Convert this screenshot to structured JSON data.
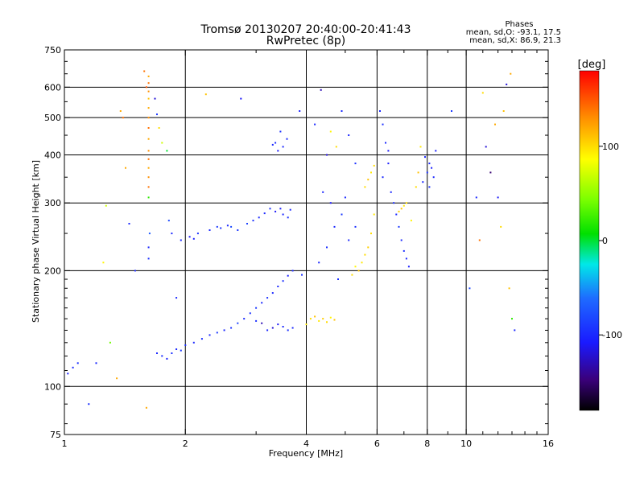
{
  "chart_data": {
    "type": "scatter",
    "title": "Tromsø 20130207 20:40:00-20:41:43",
    "subtitle": "RwPretec (8p)",
    "xlabel": "Frequency [MHz]",
    "ylabel": "Stationary phase Virtual Height [km]",
    "xscale": "log",
    "yscale": "log",
    "xlim": [
      1,
      16
    ],
    "ylim": [
      75,
      750
    ],
    "x_ticks": [
      {
        "value": 1,
        "label": "1"
      },
      {
        "value": 2,
        "label": "2"
      },
      {
        "value": 4,
        "label": "4"
      },
      {
        "value": 6,
        "label": "6"
      },
      {
        "value": 8,
        "label": "8"
      },
      {
        "value": 10,
        "label": "10"
      },
      {
        "value": 16,
        "label": "16"
      }
    ],
    "x_minor_ticks": [
      3,
      5,
      7,
      9,
      11,
      12,
      13,
      14,
      15
    ],
    "x_grid": [
      2,
      4,
      6,
      8,
      10
    ],
    "y_ticks": [
      {
        "value": 75,
        "label": "75"
      },
      {
        "value": 100,
        "label": "100"
      },
      {
        "value": 200,
        "label": "200"
      },
      {
        "value": 300,
        "label": "300"
      },
      {
        "value": 400,
        "label": "400"
      },
      {
        "value": 500,
        "label": "500"
      },
      {
        "value": 600,
        "label": "600"
      },
      {
        "value": 750,
        "label": "750"
      }
    ],
    "y_minor_ticks": [
      80,
      90,
      110,
      120,
      130,
      140,
      150,
      160,
      170,
      180,
      190,
      250,
      350,
      450,
      550,
      650,
      700
    ],
    "y_grid": [
      100,
      200,
      300,
      400,
      500,
      600
    ],
    "grid": true,
    "phases_box": {
      "title": "Phases",
      "line_o": "mean, sd,O: -93.1, 17.5",
      "line_x": "mean, sd,X:  86.9, 21.3"
    },
    "colorbar": {
      "label": "[deg]",
      "range": [
        -180,
        180
      ],
      "ticks": [
        {
          "value": 100,
          "label": "100"
        },
        {
          "value": 0,
          "label": "0"
        },
        {
          "value": -100,
          "label": "-100"
        }
      ]
    },
    "series": [
      {
        "points": [
          [
            1.02,
            108,
            -105
          ],
          [
            1.05,
            112,
            -100
          ],
          [
            1.08,
            115,
            -95
          ],
          [
            1.15,
            90,
            -95
          ],
          [
            1.2,
            115,
            -100
          ],
          [
            1.25,
            210,
            90
          ],
          [
            1.27,
            295,
            70
          ],
          [
            1.3,
            130,
            40
          ],
          [
            1.35,
            105,
            120
          ],
          [
            1.38,
            520,
            120
          ],
          [
            1.4,
            500,
            140
          ],
          [
            1.42,
            370,
            120
          ],
          [
            1.45,
            265,
            -100
          ],
          [
            1.5,
            200,
            -100
          ],
          [
            1.62,
            640,
            120
          ],
          [
            1.62,
            615,
            140
          ],
          [
            1.62,
            585,
            130
          ],
          [
            1.62,
            560,
            110
          ],
          [
            1.62,
            530,
            120
          ],
          [
            1.62,
            500,
            130
          ],
          [
            1.62,
            470,
            140
          ],
          [
            1.62,
            440,
            120
          ],
          [
            1.62,
            410,
            130
          ],
          [
            1.62,
            390,
            140
          ],
          [
            1.62,
            370,
            120
          ],
          [
            1.62,
            350,
            130
          ],
          [
            1.62,
            330,
            140
          ],
          [
            1.62,
            310,
            20
          ],
          [
            1.62,
            230,
            -100
          ],
          [
            1.62,
            215,
            -95
          ],
          [
            1.58,
            660,
            140
          ],
          [
            1.6,
            600,
            150
          ],
          [
            1.63,
            250,
            -70
          ],
          [
            1.6,
            88,
            120
          ],
          [
            1.68,
            560,
            -120
          ],
          [
            1.7,
            510,
            -90
          ],
          [
            1.72,
            470,
            100
          ],
          [
            1.75,
            430,
            70
          ],
          [
            1.8,
            410,
            0
          ],
          [
            1.82,
            270,
            -80
          ],
          [
            1.85,
            250,
            -100
          ],
          [
            1.9,
            170,
            -100
          ],
          [
            1.95,
            240,
            -100
          ],
          [
            2.05,
            245,
            -110
          ],
          [
            2.1,
            242,
            -105
          ],
          [
            2.15,
            250,
            -95
          ],
          [
            2.25,
            575,
            110
          ],
          [
            2.3,
            255,
            -100
          ],
          [
            2.4,
            260,
            -90
          ],
          [
            2.45,
            258,
            -95
          ],
          [
            2.55,
            262,
            -100
          ],
          [
            2.6,
            260,
            -80
          ],
          [
            2.7,
            255,
            -90
          ],
          [
            2.75,
            560,
            -110
          ],
          [
            2.85,
            265,
            -85
          ],
          [
            2.95,
            270,
            -95
          ],
          [
            3.05,
            275,
            -100
          ],
          [
            3.15,
            282,
            -100
          ],
          [
            3.25,
            290,
            -95
          ],
          [
            3.35,
            285,
            -110
          ],
          [
            3.45,
            290,
            -105
          ],
          [
            3.5,
            280,
            -100
          ],
          [
            3.6,
            275,
            -95
          ],
          [
            3.65,
            288,
            -100
          ],
          [
            3.3,
            425,
            -100
          ],
          [
            3.4,
            410,
            -110
          ],
          [
            3.5,
            420,
            -100
          ],
          [
            3.58,
            440,
            -100
          ],
          [
            3.45,
            460,
            -95
          ],
          [
            3.35,
            430,
            -100
          ],
          [
            3.85,
            520,
            -105
          ],
          [
            3.9,
            195,
            -95
          ],
          [
            4.2,
            480,
            -100
          ],
          [
            4.35,
            590,
            -130
          ],
          [
            4.5,
            400,
            -120
          ],
          [
            4.6,
            460,
            90
          ],
          [
            4.75,
            420,
            100
          ],
          [
            4.9,
            520,
            -100
          ],
          [
            5.1,
            450,
            -100
          ],
          [
            5.3,
            380,
            -95
          ]
        ]
      },
      {
        "points": [
          [
            1.7,
            122,
            -100
          ],
          [
            1.75,
            120,
            -95
          ],
          [
            1.8,
            118,
            -105
          ],
          [
            1.85,
            122,
            -95
          ],
          [
            1.9,
            125,
            -100
          ],
          [
            1.95,
            124,
            -90
          ],
          [
            2.0,
            128,
            -95
          ],
          [
            2.1,
            130,
            -100
          ],
          [
            2.2,
            133,
            -95
          ],
          [
            2.3,
            136,
            -100
          ],
          [
            2.4,
            138,
            -90
          ],
          [
            2.5,
            140,
            -100
          ],
          [
            2.6,
            142,
            -95
          ],
          [
            2.7,
            146,
            -85
          ],
          [
            2.8,
            150,
            -100
          ],
          [
            2.9,
            155,
            -95
          ],
          [
            3.0,
            160,
            -90
          ],
          [
            3.1,
            165,
            -100
          ],
          [
            3.2,
            170,
            -95
          ],
          [
            3.3,
            175,
            -100
          ],
          [
            3.4,
            182,
            -100
          ],
          [
            3.5,
            188,
            -95
          ],
          [
            3.6,
            194,
            -105
          ],
          [
            3.7,
            200,
            -100
          ],
          [
            3.2,
            140,
            -100
          ],
          [
            3.3,
            142,
            -120
          ],
          [
            3.4,
            145,
            -110
          ],
          [
            3.5,
            143,
            -100
          ],
          [
            3.6,
            140,
            -95
          ],
          [
            3.7,
            142,
            -100
          ],
          [
            3.0,
            148,
            -95
          ],
          [
            3.1,
            146,
            -130
          ]
        ]
      },
      {
        "points": [
          [
            4.1,
            150,
            100
          ],
          [
            4.2,
            152,
            110
          ],
          [
            4.3,
            148,
            95
          ],
          [
            4.4,
            150,
            105
          ],
          [
            4.5,
            147,
            100
          ],
          [
            4.6,
            151,
            90
          ],
          [
            4.7,
            149,
            110
          ],
          [
            4.0,
            145,
            95
          ],
          [
            5.2,
            195,
            100
          ],
          [
            5.3,
            205,
            90
          ],
          [
            5.4,
            200,
            110
          ],
          [
            5.5,
            210,
            95
          ],
          [
            5.6,
            220,
            100
          ],
          [
            5.7,
            230,
            105
          ],
          [
            5.8,
            250,
            100
          ],
          [
            5.9,
            280,
            95
          ],
          [
            5.6,
            330,
            100
          ],
          [
            5.7,
            345,
            110
          ],
          [
            5.8,
            360,
            95
          ],
          [
            5.9,
            375,
            100
          ],
          [
            6.8,
            285,
            105
          ],
          [
            6.9,
            290,
            110
          ],
          [
            7.0,
            295,
            95
          ],
          [
            7.1,
            300,
            100
          ],
          [
            7.3,
            270,
            90
          ],
          [
            7.5,
            330,
            100
          ],
          [
            7.6,
            360,
            110
          ],
          [
            7.7,
            420,
            95
          ]
        ]
      },
      {
        "points": [
          [
            4.3,
            210,
            -100
          ],
          [
            4.5,
            230,
            -95
          ],
          [
            4.7,
            260,
            -100
          ],
          [
            4.9,
            280,
            -90
          ],
          [
            5.0,
            310,
            -100
          ],
          [
            4.6,
            300,
            -110
          ],
          [
            4.4,
            320,
            -100
          ],
          [
            4.8,
            190,
            -95
          ],
          [
            5.1,
            240,
            -100
          ],
          [
            5.3,
            260,
            -95
          ],
          [
            6.2,
            350,
            -100
          ],
          [
            6.4,
            380,
            -105
          ],
          [
            6.5,
            320,
            -100
          ],
          [
            6.6,
            300,
            -95
          ],
          [
            6.7,
            280,
            -100
          ],
          [
            6.8,
            260,
            -90
          ],
          [
            6.9,
            240,
            -100
          ],
          [
            7.0,
            225,
            -95
          ],
          [
            7.1,
            215,
            -100
          ],
          [
            7.2,
            205,
            -105
          ],
          [
            6.1,
            520,
            -100
          ],
          [
            6.2,
            480,
            -95
          ],
          [
            6.3,
            430,
            -100
          ],
          [
            6.4,
            410,
            -110
          ],
          [
            7.8,
            340,
            -100
          ],
          [
            8.0,
            360,
            -95
          ],
          [
            8.1,
            380,
            -100
          ],
          [
            8.2,
            370,
            -105
          ],
          [
            8.3,
            350,
            -100
          ],
          [
            8.1,
            330,
            -95
          ],
          [
            7.9,
            395,
            -100
          ],
          [
            8.4,
            410,
            -105
          ]
        ]
      },
      {
        "points": [
          [
            10.6,
            310,
            -100
          ],
          [
            10.8,
            240,
            140
          ],
          [
            11.0,
            580,
            100
          ],
          [
            11.2,
            420,
            -120
          ],
          [
            11.5,
            360,
            -150
          ],
          [
            11.8,
            480,
            120
          ],
          [
            12.0,
            310,
            -110
          ],
          [
            12.2,
            260,
            100
          ],
          [
            12.4,
            520,
            110
          ],
          [
            12.6,
            610,
            -120
          ],
          [
            12.8,
            180,
            110
          ],
          [
            13.0,
            150,
            20
          ],
          [
            13.2,
            140,
            -100
          ],
          [
            12.9,
            650,
            120
          ],
          [
            10.2,
            180,
            -80
          ],
          [
            9.2,
            520,
            -90
          ]
        ]
      }
    ]
  }
}
